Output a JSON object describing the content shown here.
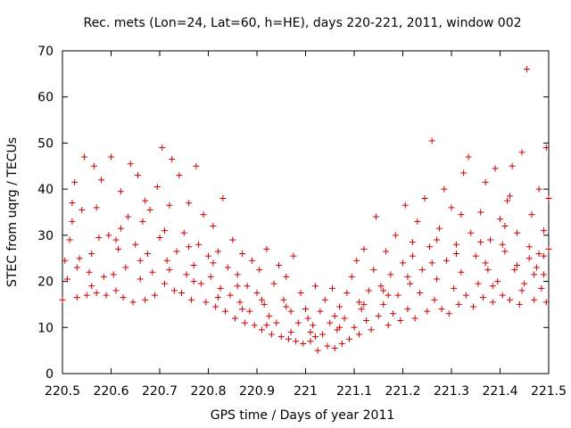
{
  "chart_data": {
    "type": "scatter",
    "title": "Rec. mets (Lon=24, Lat=60, h=HE), days 220-221, 2011, window 002",
    "xlabel": "GPS time / Days of year 2011",
    "ylabel": "STEC from uqrg / TECUs",
    "xlim": [
      220.5,
      221.5
    ],
    "ylim": [
      0,
      70
    ],
    "xticks": [
      {
        "value": 220.5,
        "label": "220.5"
      },
      {
        "value": 220.6,
        "label": "220.6"
      },
      {
        "value": 220.7,
        "label": "220.7"
      },
      {
        "value": 220.8,
        "label": "220.8"
      },
      {
        "value": 220.9,
        "label": "220.9"
      },
      {
        "value": 221.0,
        "label": "221"
      },
      {
        "value": 221.1,
        "label": "221.1"
      },
      {
        "value": 221.2,
        "label": "221.2"
      },
      {
        "value": 221.3,
        "label": "221.3"
      },
      {
        "value": 221.4,
        "label": "221.4"
      },
      {
        "value": 221.5,
        "label": "221.5"
      }
    ],
    "yticks": [
      {
        "value": 0,
        "label": "0"
      },
      {
        "value": 10,
        "label": "10"
      },
      {
        "value": 20,
        "label": "20"
      },
      {
        "value": 30,
        "label": "30"
      },
      {
        "value": 40,
        "label": "40"
      },
      {
        "value": 50,
        "label": "50"
      },
      {
        "value": 60,
        "label": "60"
      },
      {
        "value": 70,
        "label": "70"
      }
    ],
    "grid": false,
    "legend": "none",
    "marker": "+",
    "marker_color": "#cc0000",
    "series": [
      {
        "points": [
          [
            220.5,
            16.0
          ],
          [
            220.505,
            24.5
          ],
          [
            220.51,
            20.5
          ],
          [
            220.515,
            29.0
          ],
          [
            220.52,
            37.0
          ],
          [
            220.525,
            41.5
          ],
          [
            220.53,
            16.5
          ],
          [
            220.535,
            25.0
          ],
          [
            220.54,
            35.5
          ],
          [
            220.545,
            47.0
          ],
          [
            220.55,
            17.0
          ],
          [
            220.555,
            22.0
          ],
          [
            220.56,
            26.0
          ],
          [
            220.565,
            45.0
          ],
          [
            220.57,
            17.5
          ],
          [
            220.575,
            29.5
          ],
          [
            220.58,
            42.0
          ],
          [
            220.585,
            21.0
          ],
          [
            220.59,
            17.0
          ],
          [
            220.595,
            30.0
          ],
          [
            220.6,
            47.0
          ],
          [
            220.605,
            21.5
          ],
          [
            220.61,
            18.0
          ],
          [
            220.615,
            27.0
          ],
          [
            220.62,
            39.5
          ],
          [
            220.625,
            16.5
          ],
          [
            220.63,
            23.0
          ],
          [
            220.635,
            34.0
          ],
          [
            220.64,
            45.5
          ],
          [
            220.645,
            15.5
          ],
          [
            220.65,
            28.0
          ],
          [
            220.655,
            43.0
          ],
          [
            220.66,
            20.5
          ],
          [
            220.665,
            33.0
          ],
          [
            220.67,
            16.0
          ],
          [
            220.675,
            26.0
          ],
          [
            220.68,
            35.5
          ],
          [
            220.685,
            22.0
          ],
          [
            220.69,
            17.0
          ],
          [
            220.695,
            40.5
          ],
          [
            220.7,
            29.5
          ],
          [
            220.705,
            49.0
          ],
          [
            220.71,
            19.5
          ],
          [
            220.715,
            24.5
          ],
          [
            220.72,
            36.5
          ],
          [
            220.725,
            46.5
          ],
          [
            220.73,
            18.0
          ],
          [
            220.735,
            26.5
          ],
          [
            220.74,
            43.0
          ],
          [
            220.745,
            17.5
          ],
          [
            220.75,
            30.5
          ],
          [
            220.755,
            21.5
          ],
          [
            220.76,
            37.0
          ],
          [
            220.765,
            16.0
          ],
          [
            220.77,
            23.5
          ],
          [
            220.775,
            45.0
          ],
          [
            220.78,
            28.0
          ],
          [
            220.785,
            19.5
          ],
          [
            220.79,
            34.5
          ],
          [
            220.795,
            15.5
          ],
          [
            220.8,
            25.5
          ],
          [
            220.805,
            21.0
          ],
          [
            220.81,
            32.0
          ],
          [
            220.815,
            14.5
          ],
          [
            220.82,
            26.5
          ],
          [
            220.825,
            18.5
          ],
          [
            220.83,
            38.0
          ],
          [
            220.835,
            13.5
          ],
          [
            220.84,
            23.0
          ],
          [
            220.845,
            17.0
          ],
          [
            220.85,
            29.0
          ],
          [
            220.855,
            12.0
          ],
          [
            220.86,
            21.5
          ],
          [
            220.865,
            15.5
          ],
          [
            220.87,
            26.0
          ],
          [
            220.875,
            11.0
          ],
          [
            220.88,
            19.0
          ],
          [
            220.885,
            13.5
          ],
          [
            220.89,
            24.5
          ],
          [
            220.895,
            10.5
          ],
          [
            220.9,
            17.5
          ],
          [
            220.905,
            22.5
          ],
          [
            220.91,
            9.5
          ],
          [
            220.915,
            15.0
          ],
          [
            220.92,
            27.0
          ],
          [
            220.925,
            12.5
          ],
          [
            220.93,
            8.5
          ],
          [
            220.935,
            19.5
          ],
          [
            220.94,
            11.0
          ],
          [
            220.945,
            23.5
          ],
          [
            220.95,
            8.0
          ],
          [
            220.955,
            16.0
          ],
          [
            220.96,
            21.0
          ],
          [
            220.965,
            7.5
          ],
          [
            220.97,
            13.5
          ],
          [
            220.975,
            25.5
          ],
          [
            220.98,
            7.0
          ],
          [
            220.985,
            11.0
          ],
          [
            220.99,
            17.5
          ],
          [
            220.995,
            6.5
          ],
          [
            221.0,
            14.0
          ],
          [
            221.005,
            12.0
          ],
          [
            221.01,
            7.0
          ],
          [
            221.015,
            10.5
          ],
          [
            221.02,
            19.0
          ],
          [
            221.025,
            5.0
          ],
          [
            221.03,
            13.5
          ],
          [
            221.035,
            8.5
          ],
          [
            221.04,
            16.0
          ],
          [
            221.045,
            6.0
          ],
          [
            221.05,
            11.0
          ],
          [
            221.055,
            18.5
          ],
          [
            221.06,
            5.5
          ],
          [
            221.065,
            9.5
          ],
          [
            221.07,
            14.5
          ],
          [
            221.075,
            6.5
          ],
          [
            221.08,
            12.0
          ],
          [
            221.085,
            17.5
          ],
          [
            221.09,
            7.5
          ],
          [
            221.095,
            21.0
          ],
          [
            221.1,
            10.0
          ],
          [
            221.105,
            24.5
          ],
          [
            221.11,
            8.5
          ],
          [
            221.115,
            14.0
          ],
          [
            221.12,
            27.0
          ],
          [
            221.125,
            11.5
          ],
          [
            221.13,
            18.0
          ],
          [
            221.135,
            9.5
          ],
          [
            221.14,
            22.5
          ],
          [
            221.145,
            34.0
          ],
          [
            221.15,
            12.5
          ],
          [
            221.155,
            19.0
          ],
          [
            221.16,
            15.0
          ],
          [
            221.165,
            26.5
          ],
          [
            221.17,
            10.5
          ],
          [
            221.175,
            21.5
          ],
          [
            221.18,
            13.0
          ],
          [
            221.185,
            30.0
          ],
          [
            221.19,
            17.0
          ],
          [
            221.195,
            11.5
          ],
          [
            221.2,
            24.0
          ],
          [
            221.205,
            36.5
          ],
          [
            221.21,
            14.0
          ],
          [
            221.215,
            19.5
          ],
          [
            221.22,
            28.5
          ],
          [
            221.225,
            12.0
          ],
          [
            221.23,
            33.0
          ],
          [
            221.235,
            17.5
          ],
          [
            221.24,
            22.5
          ],
          [
            221.245,
            38.0
          ],
          [
            221.25,
            13.5
          ],
          [
            221.255,
            27.5
          ],
          [
            221.26,
            50.5
          ],
          [
            221.265,
            16.0
          ],
          [
            221.27,
            20.5
          ],
          [
            221.275,
            31.5
          ],
          [
            221.28,
            14.0
          ],
          [
            221.285,
            40.0
          ],
          [
            221.29,
            24.5
          ],
          [
            221.295,
            13.0
          ],
          [
            221.3,
            36.0
          ],
          [
            221.305,
            18.5
          ],
          [
            221.31,
            28.0
          ],
          [
            221.315,
            15.0
          ],
          [
            221.32,
            22.0
          ],
          [
            221.325,
            43.5
          ],
          [
            221.33,
            17.0
          ],
          [
            221.335,
            47.0
          ],
          [
            221.34,
            30.5
          ],
          [
            221.345,
            14.5
          ],
          [
            221.35,
            25.5
          ],
          [
            221.355,
            19.5
          ],
          [
            221.36,
            35.0
          ],
          [
            221.365,
            16.5
          ],
          [
            221.37,
            41.5
          ],
          [
            221.375,
            22.5
          ],
          [
            221.38,
            29.0
          ],
          [
            221.385,
            15.5
          ],
          [
            221.39,
            44.5
          ],
          [
            221.395,
            20.0
          ],
          [
            221.4,
            33.5
          ],
          [
            221.405,
            17.0
          ],
          [
            221.41,
            26.5
          ],
          [
            221.415,
            37.5
          ],
          [
            221.42,
            16.0
          ],
          [
            221.425,
            45.0
          ],
          [
            221.43,
            22.5
          ],
          [
            221.435,
            30.5
          ],
          [
            221.44,
            15.0
          ],
          [
            221.445,
            48.0
          ],
          [
            221.45,
            19.5
          ],
          [
            221.455,
            66.0
          ],
          [
            221.46,
            27.5
          ],
          [
            221.465,
            34.5
          ],
          [
            221.47,
            16.0
          ],
          [
            221.475,
            23.0
          ],
          [
            221.48,
            40.0
          ],
          [
            221.485,
            18.5
          ],
          [
            221.49,
            31.0
          ],
          [
            221.495,
            49.0
          ],
          [
            220.53,
            23.0
          ],
          [
            220.56,
            19.0
          ],
          [
            220.61,
            29.0
          ],
          [
            220.66,
            24.5
          ],
          [
            220.71,
            31.0
          ],
          [
            220.76,
            27.5
          ],
          [
            220.81,
            24.0
          ],
          [
            220.86,
            19.0
          ],
          [
            220.91,
            16.0
          ],
          [
            220.96,
            14.5
          ],
          [
            221.01,
            9.0
          ],
          [
            221.06,
            12.5
          ],
          [
            221.11,
            15.5
          ],
          [
            221.16,
            18.0
          ],
          [
            221.21,
            21.0
          ],
          [
            221.26,
            24.0
          ],
          [
            221.31,
            26.0
          ],
          [
            221.36,
            28.5
          ],
          [
            221.41,
            32.0
          ],
          [
            221.46,
            25.0
          ],
          [
            220.52,
            33.0
          ],
          [
            220.57,
            36.0
          ],
          [
            220.62,
            31.5
          ],
          [
            220.67,
            37.5
          ],
          [
            220.72,
            22.5
          ],
          [
            220.77,
            20.0
          ],
          [
            220.82,
            16.5
          ],
          [
            220.87,
            14.0
          ],
          [
            220.92,
            10.5
          ],
          [
            220.97,
            9.0
          ],
          [
            221.02,
            8.0
          ],
          [
            221.07,
            10.0
          ],
          [
            221.12,
            15.0
          ],
          [
            221.17,
            17.0
          ],
          [
            221.22,
            25.5
          ],
          [
            221.27,
            29.0
          ],
          [
            221.32,
            34.5
          ],
          [
            221.37,
            24.0
          ],
          [
            221.42,
            38.5
          ],
          [
            221.47,
            21.5
          ],
          [
            221.49,
            25.5
          ],
          [
            221.495,
            15.5
          ],
          [
            221.5,
            38.0
          ],
          [
            221.5,
            27.0
          ],
          [
            221.49,
            21.5
          ],
          [
            221.48,
            26.0
          ],
          [
            221.445,
            18.0
          ],
          [
            221.435,
            23.5
          ],
          [
            221.405,
            28.0
          ],
          [
            221.385,
            19.0
          ]
        ]
      }
    ]
  }
}
